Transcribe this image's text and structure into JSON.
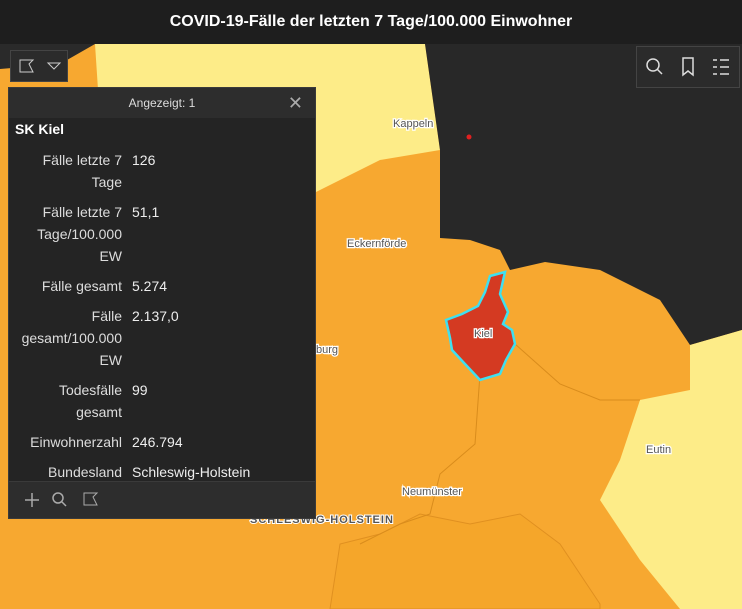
{
  "header": {
    "title": "COVID-19-Fälle der letzten 7 Tage/100.000 Einwohner"
  },
  "map": {
    "labels": [
      "Kappeln",
      "Eckernförde",
      "Kiel",
      "burg",
      "Eutin",
      "Neumünster",
      "SCHLESWIG-HOLSTEIN"
    ]
  },
  "popup": {
    "counter": "Angezeigt: 1",
    "title": "SK Kiel",
    "fields": [
      {
        "label": "Fälle letzte 7 Tage",
        "value": "126"
      },
      {
        "label": "Fälle letzte 7 Tage/100.000 EW",
        "value": "51,1"
      },
      {
        "label": "Fälle gesamt",
        "value": "5.274"
      },
      {
        "label": "Fälle gesamt/100.000 EW",
        "value": "2.137,0"
      },
      {
        "label": "Todesfälle gesamt",
        "value": "99"
      },
      {
        "label": "Einwohnerzahl",
        "value": "246.794"
      },
      {
        "label": "Bundesland",
        "value": "Schleswig-Holstein"
      }
    ]
  }
}
